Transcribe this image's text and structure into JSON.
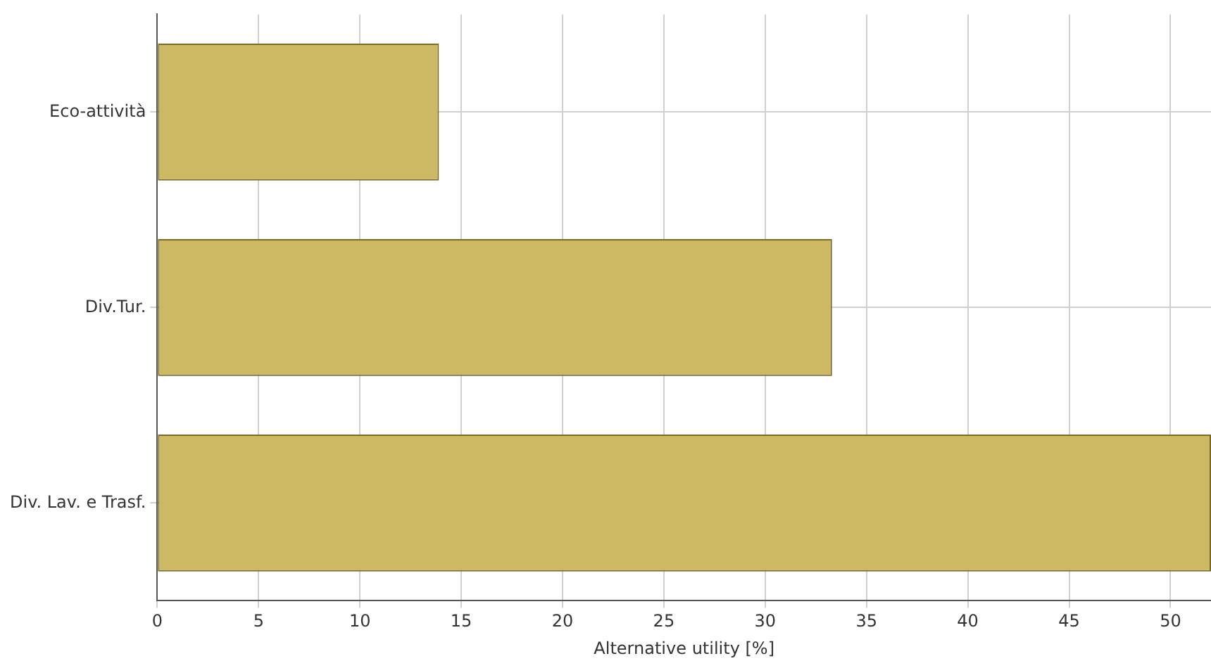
{
  "chart_data": {
    "type": "bar",
    "orientation": "horizontal",
    "xlabel": "Alternative utility [%]",
    "categories": [
      "Eco-attività",
      "Div.Tur.",
      "Div. Lav. e Trasf."
    ],
    "values": [
      13.9,
      33.3,
      52
    ],
    "color": "#cdb964",
    "xlim": [
      0,
      52
    ],
    "xticks": [
      0,
      5,
      10,
      15,
      20,
      25,
      30,
      35,
      40,
      45,
      50
    ],
    "grid": true,
    "legend": false
  }
}
